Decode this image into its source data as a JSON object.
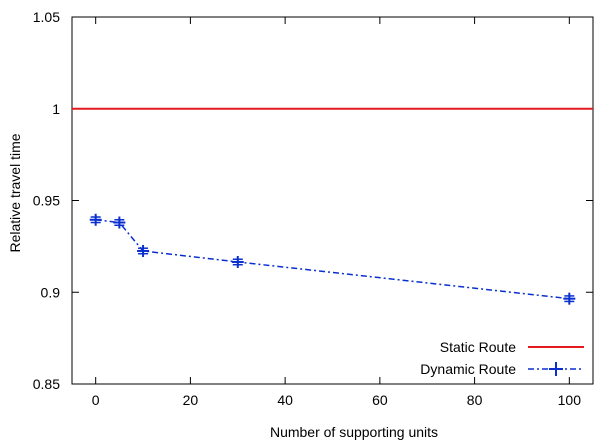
{
  "chart_data": {
    "type": "line",
    "title": "",
    "xlabel": "Number of supporting units",
    "ylabel": "Relative travel time",
    "xlim": [
      -5,
      105
    ],
    "ylim": [
      0.85,
      1.05
    ],
    "x_ticks": [
      0,
      20,
      40,
      60,
      80,
      100
    ],
    "y_ticks": [
      0.85,
      0.9,
      0.95,
      1,
      1.05
    ],
    "x_tick_labels": [
      "0",
      "20",
      "40",
      "60",
      "80",
      "100"
    ],
    "y_tick_labels": [
      "0.85",
      "0.9",
      "0.95",
      "1",
      "1.05"
    ],
    "grid": false,
    "legend_position": "bottom-right",
    "series": [
      {
        "name": "Static Route",
        "color": "#e41a1c",
        "style": "solid",
        "x": [
          -5,
          105
        ],
        "values": [
          1,
          1
        ]
      },
      {
        "name": "Dynamic Route",
        "color": "#0a2fcf",
        "style": "dash-dot",
        "marker": "plus-with-errorbars",
        "x": [
          0,
          5,
          10,
          30,
          100
        ],
        "values": [
          0.9395,
          0.938,
          0.9225,
          0.9165,
          0.8965
        ],
        "error": [
          0.0015,
          0.0015,
          0.0015,
          0.0015,
          0.0015
        ]
      }
    ]
  }
}
